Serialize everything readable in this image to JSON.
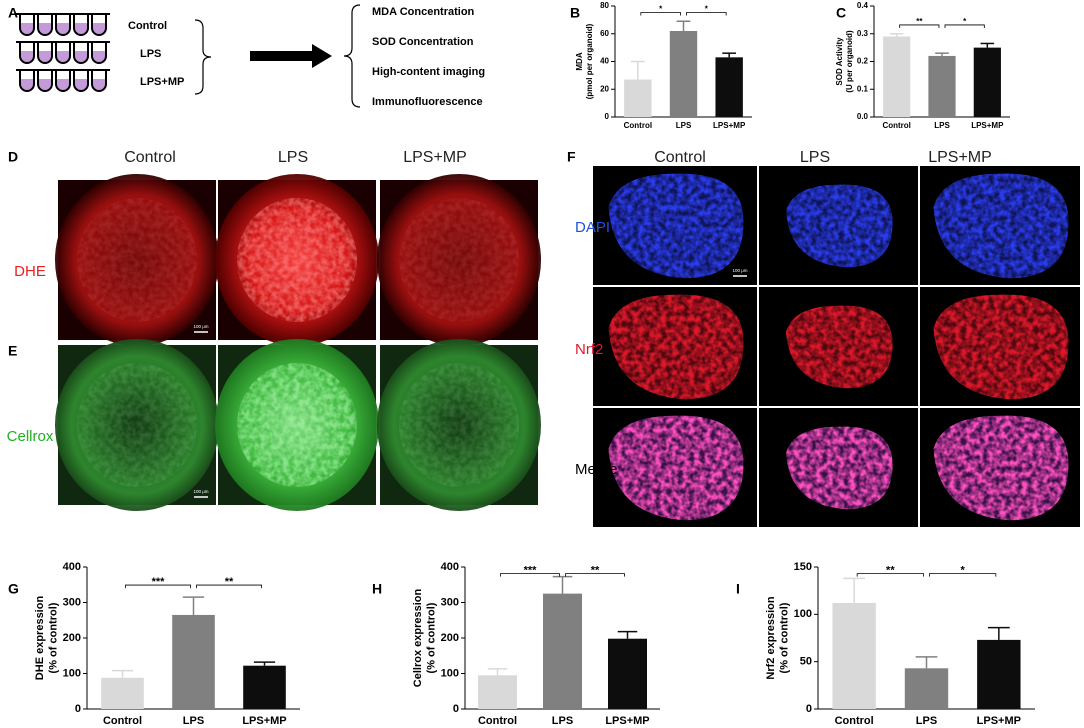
{
  "panel_a": {
    "label": "A",
    "groups": [
      "Control",
      "LPS",
      "LPS+MP"
    ],
    "outputs": [
      "MDA Concentration",
      "SOD Concentration",
      "High-content imaging",
      "Immunofluorescence"
    ]
  },
  "chart_data": [
    {
      "label": "B",
      "type": "bar",
      "ylabel": [
        "MDA",
        "(pmol per organoid)"
      ],
      "categories": [
        "Control",
        "LPS",
        "LPS+MP"
      ],
      "values": [
        27,
        62,
        43
      ],
      "errors": [
        13,
        7,
        3
      ],
      "colors": [
        "#d9d9d9",
        "#808080",
        "#0d0d0d"
      ],
      "ylim": [
        0,
        80
      ],
      "yticks": [
        0,
        20,
        40,
        60,
        80
      ],
      "significance": [
        "*",
        "*"
      ]
    },
    {
      "label": "C",
      "type": "bar",
      "ylabel": [
        "SOD Activity",
        "(U per organoid)"
      ],
      "categories": [
        "Control",
        "LPS",
        "LPS+MP"
      ],
      "values": [
        0.29,
        0.22,
        0.25
      ],
      "errors": [
        0.01,
        0.01,
        0.015
      ],
      "colors": [
        "#d9d9d9",
        "#808080",
        "#0d0d0d"
      ],
      "ylim": [
        0,
        0.4
      ],
      "yticks": [
        {
          "value": 0,
          "label": "0.0"
        },
        0.1,
        0.2,
        0.3,
        0.4
      ],
      "significance": [
        "**",
        "*"
      ]
    },
    {
      "label": "G",
      "type": "bar",
      "ylabel": [
        "DHE expression",
        "(% of control)"
      ],
      "categories": [
        "Control",
        "LPS",
        "LPS+MP"
      ],
      "values": [
        88,
        265,
        122
      ],
      "errors": [
        20,
        50,
        10
      ],
      "colors": [
        "#d9d9d9",
        "#808080",
        "#0d0d0d"
      ],
      "ylim": [
        0,
        400
      ],
      "yticks": [
        0,
        100,
        200,
        300,
        400
      ],
      "significance": [
        "***",
        "**"
      ]
    },
    {
      "label": "H",
      "type": "bar",
      "ylabel": [
        "Cellrox expression",
        "(% of control)"
      ],
      "categories": [
        "Control",
        "LPS",
        "LPS+MP"
      ],
      "values": [
        95,
        325,
        198
      ],
      "errors": [
        18,
        48,
        20
      ],
      "colors": [
        "#d9d9d9",
        "#808080",
        "#0d0d0d"
      ],
      "ylim": [
        0,
        400
      ],
      "yticks": [
        0,
        100,
        200,
        300,
        400
      ],
      "significance": [
        "***",
        "**"
      ]
    },
    {
      "label": "I",
      "type": "bar",
      "ylabel": [
        "Nrf2 expression",
        "(% of control)"
      ],
      "categories": [
        "Control",
        "LPS",
        "LPS+MP"
      ],
      "values": [
        112,
        43,
        73
      ],
      "errors": [
        26,
        12,
        13
      ],
      "colors": [
        "#d9d9d9",
        "#808080",
        "#0d0d0d"
      ],
      "ylim": [
        0,
        150
      ],
      "yticks": [
        0,
        50,
        100,
        150
      ],
      "significance": [
        "**",
        "*"
      ]
    }
  ],
  "panel_d": {
    "label": "D",
    "columns": [
      "Control",
      "LPS",
      "LPS+MP"
    ],
    "rows": [
      "DHE"
    ]
  },
  "panel_e": {
    "label": "E",
    "rows": [
      "Cellrox"
    ]
  },
  "panel_f": {
    "label": "F",
    "columns": [
      "Control",
      "LPS",
      "LPS+MP"
    ],
    "rows": [
      "DAPI",
      "Nrf2",
      "Merge"
    ]
  },
  "scale_bar": "100 μm"
}
